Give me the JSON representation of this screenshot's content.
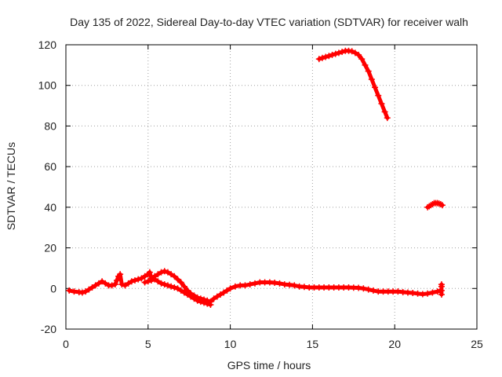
{
  "chart_data": {
    "type": "scatter",
    "title": "Day 135 of 2022, Sidereal Day-to-day VTEC variation (SDTVAR) for receiver walh",
    "xlabel": "GPS time / hours",
    "ylabel": "SDTVAR / TECUs",
    "xlim": [
      0,
      25
    ],
    "ylim": [
      -20,
      120
    ],
    "xticks": [
      0,
      5,
      10,
      15,
      20,
      25
    ],
    "yticks": [
      -20,
      0,
      20,
      40,
      60,
      80,
      100,
      120
    ],
    "grid": true,
    "marker": "+",
    "series": [
      {
        "name": "SDTVAR",
        "color": "#ff0000",
        "segments": [
          {
            "name": "baseline-main",
            "x": [
              0.2,
              0.5,
              0.8,
              1.0,
              1.2,
              1.4,
              1.6,
              1.8,
              2.0,
              2.2,
              2.4,
              2.6,
              2.8,
              3.0,
              3.1,
              3.2,
              3.3,
              3.4,
              3.6,
              3.8,
              4.0,
              4.2,
              4.4,
              4.6,
              4.8,
              5.0,
              5.1,
              5.2,
              5.4,
              5.6,
              5.8,
              6.0,
              6.2,
              6.4,
              6.6,
              6.8,
              7.0,
              7.2,
              7.4,
              7.6,
              7.8,
              8.0,
              8.2,
              8.4,
              8.6,
              8.8,
              9.0,
              9.2,
              9.4,
              9.6,
              9.8,
              10.0,
              10.3,
              10.6,
              10.9,
              11.2,
              11.5,
              11.8,
              12.1,
              12.4,
              12.7,
              13.0,
              13.3,
              13.6,
              13.9,
              14.2,
              14.5,
              14.8,
              15.1,
              15.4,
              15.7,
              16.0,
              16.3,
              16.6,
              16.9,
              17.2,
              17.5,
              17.8,
              18.1,
              18.4,
              18.7,
              19.0,
              19.3,
              19.6,
              19.9,
              20.2,
              20.5,
              20.8,
              21.1,
              21.4,
              21.7,
              22.0,
              22.3,
              22.6,
              22.8
            ],
            "y": [
              -1,
              -1.5,
              -1.8,
              -2,
              -1.5,
              -0.5,
              0.5,
              1.5,
              2.5,
              3.5,
              2.5,
              1.5,
              1.5,
              2,
              4,
              6,
              7,
              2,
              1.5,
              2.5,
              3.5,
              4,
              4.5,
              5,
              6,
              7,
              8,
              5,
              6,
              7,
              8,
              8.5,
              8,
              7,
              6,
              4.5,
              3,
              1,
              -1,
              -2.5,
              -3.5,
              -4.5,
              -5,
              -5.5,
              -6,
              -6.5,
              -5,
              -4,
              -3,
              -2,
              -1,
              0,
              1,
              1.5,
              1.5,
              2,
              2.5,
              3,
              3,
              3,
              2.8,
              2.5,
              2,
              1.8,
              1.5,
              1,
              0.8,
              0.5,
              0.5,
              0.5,
              0.5,
              0.5,
              0.5,
              0.5,
              0.5,
              0.5,
              0.4,
              0.3,
              0,
              -0.5,
              -1,
              -1.5,
              -1.5,
              -1.5,
              -1.5,
              -1.5,
              -1.8,
              -2,
              -2.2,
              -2.5,
              -2.8,
              -2.5,
              -2,
              -1.5,
              -1
            ]
          },
          {
            "name": "lower-branch",
            "x": [
              4.8,
              5.0,
              5.2,
              5.4,
              5.6,
              5.8,
              6.0,
              6.2,
              6.4,
              6.6,
              6.8,
              7.0,
              7.2,
              7.4,
              7.6,
              7.8,
              8.0,
              8.2,
              8.4,
              8.6,
              8.8
            ],
            "y": [
              3,
              3.5,
              4,
              4.5,
              3.5,
              2.5,
              2,
              1.5,
              1,
              0.5,
              0,
              -1,
              -2,
              -3,
              -4,
              -5,
              -6,
              -6.5,
              -7,
              -7.5,
              -8
            ]
          },
          {
            "name": "upper-arc",
            "x": [
              15.4,
              15.6,
              15.8,
              16.0,
              16.2,
              16.4,
              16.6,
              16.8,
              17.0,
              17.2,
              17.4,
              17.6,
              17.8,
              18.0,
              18.2,
              18.4,
              18.6,
              18.8,
              19.0,
              19.2,
              19.4,
              19.55
            ],
            "y": [
              113,
              113.5,
              114,
              114.5,
              115,
              115.5,
              116,
              116.5,
              117,
              117,
              116.8,
              116,
              115,
              113,
              110,
              107,
              103,
              99,
              95,
              91,
              87,
              84
            ]
          },
          {
            "name": "late-cluster",
            "x": [
              22.0,
              22.1,
              22.2,
              22.3,
              22.4,
              22.5,
              22.6,
              22.7,
              22.8,
              22.9
            ],
            "y": [
              40,
              40.5,
              41,
              41.5,
              42,
              42,
              42,
              41.8,
              41.5,
              41
            ]
          },
          {
            "name": "end-spike",
            "x": [
              22.85,
              22.85,
              22.85,
              22.85
            ],
            "y": [
              -3,
              -1,
              1,
              2
            ]
          }
        ]
      }
    ]
  }
}
